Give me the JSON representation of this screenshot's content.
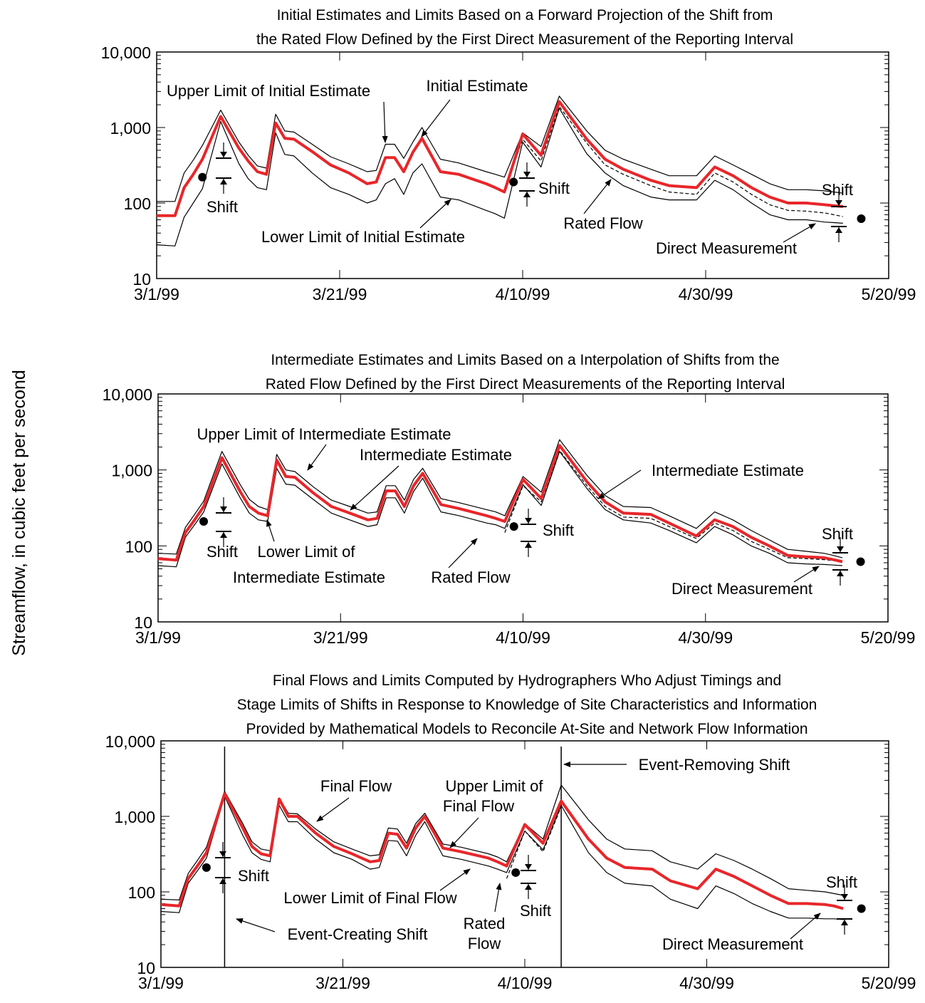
{
  "figure": {
    "ylabel": "Streamflow, in cubic feet per second"
  },
  "chart_data": [
    {
      "type": "line",
      "title": "Initial Estimates and Limits Based on a Forward Projection of the Shift from",
      "subtitle": "the Rated Flow Defined by the First Direct Measurement of the Reporting Interval",
      "xlabel": "",
      "ylabel": "Streamflow, in cubic feet per second",
      "y_scale": "log",
      "ylim": [
        10,
        10000
      ],
      "xlim": [
        "3/1/99",
        "5/20/99"
      ],
      "x_tick_labels": [
        "3/1/99",
        "3/21/99",
        "4/10/99",
        "4/30/99",
        "5/20/99"
      ],
      "y_tick_labels": [
        "10",
        "100",
        "1,000",
        "10,000"
      ],
      "legend": "none",
      "colors": {
        "estimate": "#e8262a",
        "limits": "#000000",
        "rated": "#000000"
      },
      "x": [
        "3/1/99",
        "3/3/99",
        "3/4/99",
        "3/5/99",
        "3/6/99",
        "3/8/99",
        "3/10/99",
        "3/11/99",
        "3/12/99",
        "3/13/99",
        "3/14/99",
        "3/15/99",
        "3/16/99",
        "3/18/99",
        "3/20/99",
        "3/22/99",
        "3/24/99",
        "3/25/99",
        "3/26/99",
        "3/27/99",
        "3/28/99",
        "3/29/99",
        "3/30/99",
        "4/1/99",
        "4/3/99",
        "4/6/99",
        "4/7/99",
        "4/8/99",
        "4/10/99",
        "4/12/99",
        "4/14/99",
        "4/17/99",
        "4/19/99",
        "4/21/99",
        "4/24/99",
        "4/26/99",
        "4/29/99",
        "5/1/99",
        "5/3/99",
        "5/5/99",
        "5/7/99",
        "5/9/99",
        "5/11/99",
        "5/13/99",
        "5/14/99",
        "5/15/99"
      ],
      "series": [
        {
          "role": "estimate",
          "values": [
            68,
            68,
            160,
            240,
            380,
            1400,
            530,
            360,
            260,
            240,
            1150,
            720,
            700,
            480,
            320,
            250,
            180,
            190,
            400,
            400,
            260,
            470,
            720,
            260,
            240,
            180,
            160,
            140,
            820,
            430,
            2200,
            700,
            380,
            280,
            200,
            170,
            160,
            300,
            230,
            160,
            120,
            100,
            100,
            95,
            92,
            90
          ]
        },
        {
          "role": "upper",
          "values": [
            105,
            105,
            250,
            370,
            580,
            1700,
            640,
            430,
            310,
            290,
            1500,
            900,
            870,
            600,
            410,
            330,
            260,
            270,
            600,
            600,
            390,
            640,
            1000,
            380,
            340,
            260,
            240,
            220,
            850,
            560,
            2600,
            900,
            500,
            380,
            280,
            230,
            230,
            420,
            320,
            240,
            180,
            150,
            150,
            145,
            140,
            135
          ]
        },
        {
          "role": "lower",
          "values": [
            28,
            27,
            65,
            100,
            155,
            1200,
            330,
            210,
            160,
            150,
            850,
            440,
            420,
            250,
            160,
            130,
            100,
            110,
            180,
            210,
            130,
            250,
            330,
            120,
            110,
            80,
            72,
            63,
            640,
            300,
            1800,
            450,
            250,
            170,
            120,
            110,
            110,
            200,
            150,
            100,
            70,
            60,
            60,
            56,
            55,
            54
          ]
        },
        {
          "role": "rated",
          "values": [
            null,
            null,
            null,
            null,
            null,
            null,
            null,
            null,
            null,
            null,
            null,
            null,
            null,
            null,
            null,
            null,
            null,
            null,
            null,
            null,
            null,
            null,
            null,
            null,
            null,
            null,
            null,
            140,
            700,
            360,
            1900,
            620,
            320,
            240,
            170,
            140,
            130,
            250,
            190,
            130,
            95,
            80,
            78,
            74,
            70,
            66
          ]
        }
      ],
      "measurements": [
        {
          "x": "3/6/99",
          "y": 220
        },
        {
          "x": "4/9/99",
          "y": 190
        },
        {
          "x": "5/17/99",
          "y": 62
        }
      ],
      "annotations": [
        {
          "text": "Upper Limit of Initial Estimate"
        },
        {
          "text": "Initial Estimate"
        },
        {
          "text": "Shift"
        },
        {
          "text": "Lower Limit of Initial Estimate"
        },
        {
          "text": "Shift"
        },
        {
          "text": "Rated Flow"
        },
        {
          "text": "Shift"
        },
        {
          "text": "Direct Measurement"
        }
      ]
    },
    {
      "type": "line",
      "title": "Intermediate Estimates and Limits Based on a Interpolation of Shifts from the",
      "subtitle": "Rated Flow Defined by the First Direct Measurements of the Reporting Interval",
      "xlabel": "",
      "ylabel": "Streamflow, in cubic feet per second",
      "y_scale": "log",
      "ylim": [
        10,
        10000
      ],
      "xlim": [
        "3/1/99",
        "5/20/99"
      ],
      "x_tick_labels": [
        "3/1/99",
        "3/21/99",
        "4/10/99",
        "4/30/99",
        "5/20/99"
      ],
      "y_tick_labels": [
        "10",
        "100",
        "1,000",
        "10,000"
      ],
      "legend": "none",
      "colors": {
        "estimate": "#e8262a",
        "limits": "#000000",
        "rated": "#000000"
      },
      "x": [
        "3/1/99",
        "3/3/99",
        "3/4/99",
        "3/5/99",
        "3/6/99",
        "3/8/99",
        "3/10/99",
        "3/11/99",
        "3/12/99",
        "3/13/99",
        "3/14/99",
        "3/15/99",
        "3/16/99",
        "3/18/99",
        "3/20/99",
        "3/22/99",
        "3/24/99",
        "3/25/99",
        "3/26/99",
        "3/27/99",
        "3/28/99",
        "3/29/99",
        "3/30/99",
        "4/1/99",
        "4/3/99",
        "4/6/99",
        "4/7/99",
        "4/8/99",
        "4/10/99",
        "4/12/99",
        "4/14/99",
        "4/17/99",
        "4/19/99",
        "4/21/99",
        "4/24/99",
        "4/26/99",
        "4/29/99",
        "5/1/99",
        "5/3/99",
        "5/5/99",
        "5/7/99",
        "5/9/99",
        "5/11/99",
        "5/13/99",
        "5/14/99",
        "5/15/99"
      ],
      "series": [
        {
          "role": "estimate",
          "values": [
            68,
            65,
            150,
            220,
            330,
            1450,
            520,
            330,
            270,
            250,
            1350,
            820,
            800,
            500,
            330,
            270,
            220,
            230,
            530,
            530,
            330,
            620,
            900,
            350,
            310,
            250,
            230,
            210,
            750,
            420,
            2100,
            700,
            380,
            270,
            260,
            200,
            135,
            220,
            180,
            130,
            100,
            75,
            72,
            70,
            66,
            62
          ]
        },
        {
          "role": "upper",
          "values": [
            80,
            78,
            175,
            260,
            390,
            1750,
            640,
            410,
            330,
            300,
            1600,
            1000,
            950,
            600,
            400,
            330,
            270,
            280,
            620,
            620,
            400,
            750,
            1050,
            420,
            370,
            300,
            280,
            250,
            820,
            510,
            2500,
            850,
            460,
            330,
            320,
            250,
            170,
            280,
            220,
            160,
            120,
            90,
            85,
            80,
            75,
            70
          ]
        },
        {
          "role": "lower",
          "values": [
            55,
            53,
            130,
            190,
            280,
            1200,
            430,
            270,
            220,
            210,
            1050,
            650,
            630,
            410,
            270,
            220,
            180,
            190,
            430,
            430,
            270,
            520,
            780,
            280,
            250,
            200,
            190,
            170,
            640,
            340,
            1750,
            570,
            300,
            220,
            200,
            160,
            110,
            180,
            140,
            100,
            80,
            60,
            58,
            57,
            56,
            55
          ]
        },
        {
          "role": "rated",
          "values": [
            null,
            null,
            null,
            null,
            null,
            null,
            null,
            null,
            null,
            null,
            null,
            null,
            null,
            null,
            null,
            null,
            null,
            null,
            null,
            null,
            null,
            null,
            null,
            null,
            null,
            null,
            null,
            150,
            620,
            380,
            1800,
            620,
            330,
            240,
            230,
            180,
            125,
            200,
            160,
            115,
            90,
            70,
            68,
            66,
            64,
            62
          ]
        }
      ],
      "measurements": [
        {
          "x": "3/6/99",
          "y": 210
        },
        {
          "x": "4/9/99",
          "y": 180
        },
        {
          "x": "5/17/99",
          "y": 62
        }
      ],
      "annotations": [
        {
          "text": "Upper Limit of Intermediate Estimate"
        },
        {
          "text": "Intermediate Estimate"
        },
        {
          "text": "Intermediate Estimate"
        },
        {
          "text": "Shift"
        },
        {
          "text": "Lower Limit of"
        },
        {
          "text": "Intermediate Estimate"
        },
        {
          "text": "Rated Flow"
        },
        {
          "text": "Shift"
        },
        {
          "text": "Shift"
        },
        {
          "text": "Direct Measurement"
        }
      ]
    },
    {
      "type": "line",
      "title": "Final Flows and Limits Computed by Hydrographers Who Adjust Timings and",
      "subtitle": "Stage Limits of Shifts in Response to Knowledge of Site Characteristics and Information",
      "subtitle2": "Provided by Mathematical Models to Reconcile At-Site and Network Flow Information",
      "xlabel": "",
      "ylabel": "Streamflow, in cubic feet per second",
      "y_scale": "log",
      "ylim": [
        10,
        10000
      ],
      "xlim": [
        "3/1/99",
        "5/20/99"
      ],
      "x_tick_labels": [
        "3/1/99",
        "3/21/99",
        "4/10/99",
        "4/30/99",
        "5/20/99"
      ],
      "y_tick_labels": [
        "10",
        "100",
        "1,000",
        "10,000"
      ],
      "legend": "none",
      "colors": {
        "estimate": "#e8262a",
        "limits": "#000000",
        "rated": "#000000"
      },
      "x": [
        "3/1/99",
        "3/3/99",
        "3/4/99",
        "3/5/99",
        "3/6/99",
        "3/8/99",
        "3/10/99",
        "3/11/99",
        "3/12/99",
        "3/13/99",
        "3/14/99",
        "3/15/99",
        "3/16/99",
        "3/18/99",
        "3/20/99",
        "3/22/99",
        "3/24/99",
        "3/25/99",
        "3/26/99",
        "3/27/99",
        "3/28/99",
        "3/29/99",
        "3/30/99",
        "4/1/99",
        "4/3/99",
        "4/6/99",
        "4/7/99",
        "4/8/99",
        "4/10/99",
        "4/12/99",
        "4/14/99",
        "4/17/99",
        "4/19/99",
        "4/21/99",
        "4/24/99",
        "4/26/99",
        "4/29/99",
        "5/1/99",
        "5/3/99",
        "5/5/99",
        "5/7/99",
        "5/9/99",
        "5/11/99",
        "5/13/99",
        "5/14/99",
        "5/15/99"
      ],
      "series": [
        {
          "role": "estimate",
          "values": [
            68,
            65,
            150,
            220,
            330,
            2000,
            700,
            400,
            320,
            300,
            1700,
            1000,
            1000,
            600,
            400,
            320,
            250,
            260,
            600,
            580,
            380,
            700,
            1000,
            380,
            340,
            280,
            250,
            220,
            780,
            440,
            1600,
            500,
            280,
            210,
            200,
            140,
            110,
            200,
            160,
            120,
            90,
            70,
            70,
            68,
            65,
            60
          ]
        },
        {
          "role": "upper",
          "values": [
            80,
            78,
            175,
            260,
            390,
            2150,
            800,
            460,
            370,
            350,
            1750,
            1100,
            1080,
            680,
            460,
            370,
            300,
            310,
            700,
            680,
            440,
            800,
            1100,
            430,
            390,
            320,
            290,
            250,
            800,
            500,
            2600,
            900,
            500,
            370,
            350,
            250,
            200,
            320,
            260,
            200,
            150,
            110,
            105,
            100,
            95,
            90
          ]
        },
        {
          "role": "lower",
          "values": [
            55,
            53,
            130,
            190,
            280,
            1850,
            560,
            330,
            270,
            250,
            1400,
            850,
            850,
            500,
            330,
            270,
            200,
            210,
            480,
            470,
            300,
            560,
            850,
            300,
            270,
            220,
            200,
            180,
            640,
            360,
            1400,
            330,
            180,
            130,
            120,
            80,
            60,
            120,
            95,
            70,
            55,
            45,
            45,
            44,
            44,
            43
          ]
        },
        {
          "role": "rated",
          "values": [
            null,
            null,
            null,
            null,
            null,
            null,
            null,
            null,
            null,
            null,
            null,
            null,
            null,
            null,
            null,
            null,
            null,
            null,
            null,
            null,
            null,
            null,
            null,
            null,
            null,
            null,
            null,
            150,
            640,
            340,
            1350,
            null,
            null,
            null,
            null,
            null,
            null,
            null,
            null,
            null,
            null,
            null,
            null,
            null,
            null,
            null
          ]
        }
      ],
      "measurements": [
        {
          "x": "3/6/99",
          "y": 210
        },
        {
          "x": "4/9/99",
          "y": 180
        },
        {
          "x": "5/17/99",
          "y": 60
        }
      ],
      "event_lines": [
        "3/8/99",
        "4/14/99"
      ],
      "annotations": [
        {
          "text": "Event-Removing Shift"
        },
        {
          "text": "Final Flow"
        },
        {
          "text": "Upper Limit of"
        },
        {
          "text": "Final Flow"
        },
        {
          "text": "Shift"
        },
        {
          "text": "Lower Limit of Final Flow"
        },
        {
          "text": "Rated"
        },
        {
          "text": "Flow"
        },
        {
          "text": "Shift"
        },
        {
          "text": "Event-Creating Shift"
        },
        {
          "text": "Shift"
        },
        {
          "text": "Direct Measurement"
        }
      ]
    }
  ]
}
